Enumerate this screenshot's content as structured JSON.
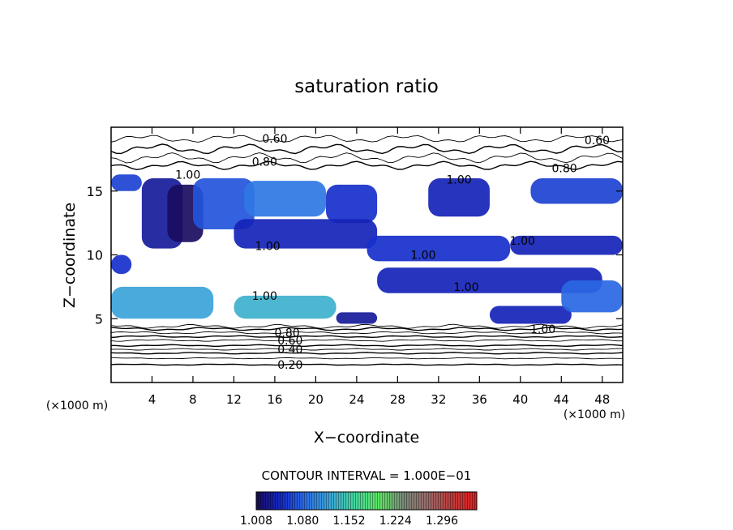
{
  "chart_data": {
    "type": "heatmap",
    "title": "saturation ratio",
    "xlabel": "X−coordinate",
    "ylabel": "Z−coordinate",
    "x_unit_left": "(×1000 m)",
    "x_unit_right": "(×1000 m)",
    "xlim": [
      0,
      50
    ],
    "ylim": [
      0,
      20
    ],
    "x_ticks": [
      4,
      8,
      12,
      16,
      20,
      24,
      28,
      32,
      36,
      40,
      44,
      48
    ],
    "y_ticks": [
      5,
      10,
      15
    ],
    "contour_interval_text": "CONTOUR INTERVAL = 1.000E−01",
    "colorbar": {
      "min": 1.008,
      "max": 1.35,
      "tick_values": [
        1.008,
        1.08,
        1.152,
        1.224,
        1.296
      ],
      "tick_labels": [
        "1.008",
        "1.080",
        "1.152",
        "1.224",
        "1.296"
      ],
      "colors": [
        "#1a0a5a",
        "#1428c8",
        "#2c6ee6",
        "#3ca6d8",
        "#44d6a0",
        "#5ee664",
        "#7a8a7a",
        "#9a6a6a",
        "#c03a3a",
        "#e02020"
      ]
    },
    "contour_labels": [
      {
        "x": 16,
        "z": 19.1,
        "text": "0.60"
      },
      {
        "x": 47.5,
        "z": 19.0,
        "text": "0.60"
      },
      {
        "x": 15.0,
        "z": 17.3,
        "text": "0.80"
      },
      {
        "x": 44.3,
        "z": 16.8,
        "text": "0.80"
      },
      {
        "x": 7.5,
        "z": 16.3,
        "text": "1.00"
      },
      {
        "x": 34.0,
        "z": 15.9,
        "text": "1.00"
      },
      {
        "x": 15.3,
        "z": 10.7,
        "text": "1.00"
      },
      {
        "x": 40.2,
        "z": 11.1,
        "text": "1.00"
      },
      {
        "x": 30.5,
        "z": 10.0,
        "text": "1.00"
      },
      {
        "x": 34.7,
        "z": 7.5,
        "text": "1.00"
      },
      {
        "x": 15.0,
        "z": 6.8,
        "text": "1.00"
      },
      {
        "x": 42.2,
        "z": 4.2,
        "text": "1.00"
      },
      {
        "x": 17.2,
        "z": 3.9,
        "text": "0.80"
      },
      {
        "x": 17.5,
        "z": 3.3,
        "text": "0.60"
      },
      {
        "x": 17.5,
        "z": 2.6,
        "text": "0.40"
      },
      {
        "x": 17.5,
        "z": 1.4,
        "text": "0.20"
      }
    ],
    "supersaturated_regions": [
      {
        "x": [
          0,
          3
        ],
        "z": [
          15,
          16.3
        ],
        "level": 1.06
      },
      {
        "x": [
          3,
          7
        ],
        "z": [
          10.5,
          16
        ],
        "level": 1.03
      },
      {
        "x": [
          5.5,
          9
        ],
        "z": [
          11,
          15.5
        ],
        "level": 1.01
      },
      {
        "x": [
          8,
          14
        ],
        "z": [
          12,
          16
        ],
        "level": 1.07
      },
      {
        "x": [
          13,
          21
        ],
        "z": [
          13,
          15.8
        ],
        "level": 1.09
      },
      {
        "x": [
          21,
          26
        ],
        "z": [
          12.5,
          15.5
        ],
        "level": 1.05
      },
      {
        "x": [
          31,
          37
        ],
        "z": [
          13,
          16
        ],
        "level": 1.04
      },
      {
        "x": [
          41,
          50
        ],
        "z": [
          14,
          16
        ],
        "level": 1.06
      },
      {
        "x": [
          12,
          26
        ],
        "z": [
          10.5,
          12.8
        ],
        "level": 1.04
      },
      {
        "x": [
          25,
          39
        ],
        "z": [
          9.5,
          11.5
        ],
        "level": 1.05
      },
      {
        "x": [
          39,
          50
        ],
        "z": [
          10,
          11.5
        ],
        "level": 1.04
      },
      {
        "x": [
          0,
          2
        ],
        "z": [
          8.5,
          10
        ],
        "level": 1.05
      },
      {
        "x": [
          26,
          48
        ],
        "z": [
          7,
          9
        ],
        "level": 1.04
      },
      {
        "x": [
          0,
          10
        ],
        "z": [
          5,
          7.5
        ],
        "level": 1.12
      },
      {
        "x": [
          12,
          22
        ],
        "z": [
          5,
          6.8
        ],
        "level": 1.13
      },
      {
        "x": [
          22,
          26
        ],
        "z": [
          4.6,
          5.5
        ],
        "level": 1.03
      },
      {
        "x": [
          37,
          45
        ],
        "z": [
          4.6,
          6
        ],
        "level": 1.04
      },
      {
        "x": [
          44,
          50
        ],
        "z": [
          5.5,
          8
        ],
        "level": 1.08
      }
    ]
  }
}
